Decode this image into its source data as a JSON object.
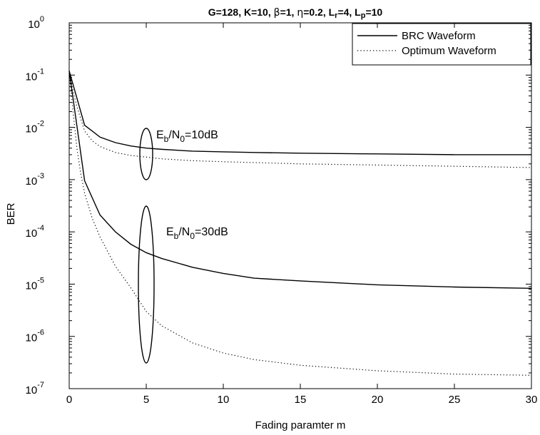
{
  "chart_data": {
    "type": "line",
    "title_parts": [
      {
        "t": "G=128, K=10, "
      },
      {
        "t": "β",
        "greek": true
      },
      {
        "t": "=1, "
      },
      {
        "t": "η",
        "greek": true
      },
      {
        "t": "=0.2,  L"
      },
      {
        "t": "r",
        "sub": true
      },
      {
        "t": "=4, L"
      },
      {
        "t": "p",
        "sub": true
      },
      {
        "t": "=10"
      }
    ],
    "xlabel": "Fading paramter m",
    "ylabel": "BER",
    "xlim": [
      0,
      30
    ],
    "ylim": [
      1e-07,
      1
    ],
    "yscale": "log",
    "x_ticks": [
      0,
      5,
      10,
      15,
      20,
      25,
      30
    ],
    "y_ticks": [
      {
        "base": "10",
        "exp": "0",
        "value": 1
      },
      {
        "base": "10",
        "exp": "-1",
        "value": 0.1
      },
      {
        "base": "10",
        "exp": "-2",
        "value": 0.01
      },
      {
        "base": "10",
        "exp": "-3",
        "value": 0.001
      },
      {
        "base": "10",
        "exp": "-4",
        "value": 0.0001
      },
      {
        "base": "10",
        "exp": "-5",
        "value": 1e-05
      },
      {
        "base": "10",
        "exp": "-6",
        "value": 1e-06
      },
      {
        "base": "10",
        "exp": "-7",
        "value": 1e-07
      }
    ],
    "grid": false,
    "legend": {
      "position": "top-right",
      "entries": [
        {
          "label": "BRC Waveform",
          "style": "solid"
        },
        {
          "label": "Optimum Waveform",
          "style": "dotted"
        }
      ]
    },
    "series": [
      {
        "group": "Eb/N0=10dB",
        "legend": "BRC Waveform",
        "style": "solid",
        "x": [
          0,
          1,
          2,
          3,
          4,
          5,
          6,
          8,
          10,
          12,
          15,
          20,
          25,
          30
        ],
        "y": [
          0.12,
          0.011,
          0.0065,
          0.0051,
          0.0044,
          0.004,
          0.0038,
          0.0035,
          0.0034,
          0.0033,
          0.0032,
          0.0031,
          0.003,
          0.003
        ]
      },
      {
        "group": "Eb/N0=10dB",
        "legend": "Optimum Waveform",
        "style": "dotted",
        "x": [
          0,
          0.25,
          0.5,
          1,
          1.5,
          2,
          3,
          4,
          5,
          6,
          8,
          10,
          15,
          20,
          25,
          30
        ],
        "y": [
          0.12,
          0.05,
          0.025,
          0.0085,
          0.0055,
          0.0043,
          0.0033,
          0.0029,
          0.0027,
          0.0025,
          0.0023,
          0.0022,
          0.002,
          0.0019,
          0.0018,
          0.0017
        ]
      },
      {
        "group": "Eb/N0=30dB",
        "legend": "BRC Waveform",
        "style": "solid",
        "x": [
          0,
          1,
          2,
          3,
          4,
          5,
          6,
          8,
          10,
          12,
          15,
          20,
          25,
          30
        ],
        "y": [
          0.12,
          0.00095,
          0.00021,
          0.0001,
          5.8e-05,
          4e-05,
          3.1e-05,
          2.1e-05,
          1.6e-05,
          1.3e-05,
          1.15e-05,
          9.7e-06,
          8.8e-06,
          8.3e-06
        ]
      },
      {
        "group": "Eb/N0=30dB",
        "legend": "Optimum Waveform",
        "style": "dotted",
        "x": [
          0,
          0.25,
          0.5,
          0.75,
          1,
          1.5,
          2,
          3,
          4,
          5,
          6,
          8,
          10,
          12,
          15,
          20,
          25,
          30
        ],
        "y": [
          0.12,
          0.02,
          0.004,
          0.0013,
          0.00055,
          0.00018,
          8e-05,
          2.2e-05,
          8.5e-06,
          3e-06,
          1.6e-06,
          7.5e-07,
          4.8e-07,
          3.6e-07,
          2.8e-07,
          2.2e-07,
          1.9e-07,
          1.8e-07
        ]
      }
    ],
    "annotations": [
      {
        "id": "eb10",
        "main": "E",
        "sub1": "b",
        "mid": "/N",
        "sub2": "0",
        "tail": "=10dB"
      },
      {
        "id": "eb30",
        "main": "E",
        "sub1": "b",
        "mid": "/N",
        "sub2": "0",
        "tail": "=30dB"
      }
    ]
  }
}
